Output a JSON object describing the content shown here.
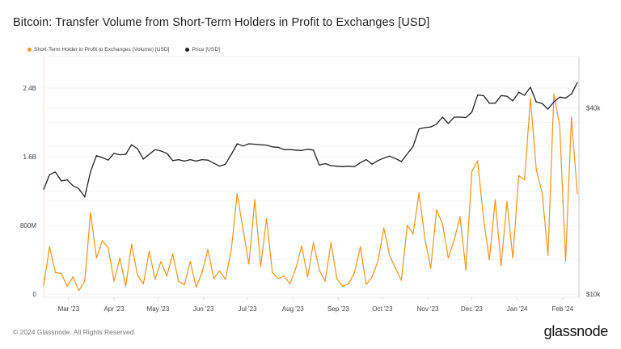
{
  "title": "Bitcoin: Transfer Volume from Short-Term Holders in Profit to Exchanges [USD]",
  "footer": "© 2024 Glassnode. All Rights Reserved.",
  "logo": "glassnode",
  "chart_data": {
    "type": "line",
    "title": "Bitcoin: Transfer Volume from Short-Term Holders in Profit to Exchanges [USD]",
    "legend_position": "top-left",
    "grid": true,
    "x_ticks": [
      "Mar '23",
      "Apr '23",
      "May '23",
      "Jun '23",
      "Jul '23",
      "Aug '23",
      "Sep '23",
      "Oct '23",
      "Nov '23",
      "Dec '23",
      "Jan '24",
      "Feb '24"
    ],
    "x_tick_dates": [
      "2023-03-01",
      "2023-04-01",
      "2023-05-01",
      "2023-06-01",
      "2023-07-01",
      "2023-08-01",
      "2023-09-01",
      "2023-10-01",
      "2023-11-01",
      "2023-12-01",
      "2024-01-01",
      "2024-02-01"
    ],
    "xlim": [
      "2023-02-12",
      "2024-02-11"
    ],
    "y_left": {
      "ticks": [
        "0",
        "800M",
        "1.6B",
        "2.4B"
      ],
      "tick_values": [
        0,
        800000000,
        1600000000,
        2400000000
      ],
      "ylim": [
        0,
        2800000000
      ],
      "scale": "linear"
    },
    "y_right": {
      "ticks": [
        "$10k",
        "$40k"
      ],
      "tick_values": [
        10000,
        40000
      ],
      "ylim": [
        10000,
        55000
      ],
      "scale": "log"
    },
    "x": [
      "2023-02-12",
      "2023-02-16",
      "2023-02-20",
      "2023-02-24",
      "2023-02-28",
      "2023-03-04",
      "2023-03-08",
      "2023-03-12",
      "2023-03-16",
      "2023-03-20",
      "2023-03-24",
      "2023-03-28",
      "2023-04-01",
      "2023-04-05",
      "2023-04-09",
      "2023-04-13",
      "2023-04-17",
      "2023-04-21",
      "2023-04-25",
      "2023-04-29",
      "2023-05-03",
      "2023-05-07",
      "2023-05-11",
      "2023-05-15",
      "2023-05-19",
      "2023-05-23",
      "2023-05-27",
      "2023-05-31",
      "2023-06-04",
      "2023-06-08",
      "2023-06-12",
      "2023-06-16",
      "2023-06-20",
      "2023-06-24",
      "2023-06-28",
      "2023-07-02",
      "2023-07-06",
      "2023-07-10",
      "2023-07-14",
      "2023-07-18",
      "2023-07-22",
      "2023-07-26",
      "2023-07-30",
      "2023-08-03",
      "2023-08-07",
      "2023-08-11",
      "2023-08-15",
      "2023-08-19",
      "2023-08-23",
      "2023-08-27",
      "2023-08-31",
      "2023-09-04",
      "2023-09-08",
      "2023-09-12",
      "2023-09-16",
      "2023-09-20",
      "2023-09-24",
      "2023-09-28",
      "2023-10-02",
      "2023-10-06",
      "2023-10-10",
      "2023-10-14",
      "2023-10-18",
      "2023-10-22",
      "2023-10-26",
      "2023-10-30",
      "2023-11-03",
      "2023-11-07",
      "2023-11-11",
      "2023-11-15",
      "2023-11-19",
      "2023-11-23",
      "2023-11-27",
      "2023-12-01",
      "2023-12-05",
      "2023-12-09",
      "2023-12-13",
      "2023-12-17",
      "2023-12-21",
      "2023-12-25",
      "2023-12-29",
      "2024-01-02",
      "2024-01-06",
      "2024-01-10",
      "2024-01-14",
      "2024-01-18",
      "2024-01-22",
      "2024-01-26",
      "2024-01-30",
      "2024-02-03",
      "2024-02-07",
      "2024-02-11"
    ],
    "series": [
      {
        "name": "Short-Term Holder in Profit to Exchanges (Volume) [USD]",
        "axis": "left",
        "color": "#f7931a",
        "values_usd_millions": [
          100,
          550,
          250,
          240,
          90,
          200,
          40,
          150,
          950,
          420,
          620,
          540,
          150,
          420,
          90,
          580,
          220,
          120,
          500,
          170,
          380,
          210,
          470,
          150,
          110,
          380,
          80,
          250,
          520,
          180,
          270,
          170,
          520,
          1170,
          750,
          350,
          1100,
          320,
          880,
          250,
          180,
          210,
          120,
          300,
          560,
          200,
          600,
          280,
          150,
          600,
          180,
          90,
          120,
          250,
          550,
          110,
          200,
          380,
          770,
          450,
          300,
          160,
          800,
          700,
          1180,
          650,
          300,
          980,
          820,
          420,
          630,
          900,
          280,
          1430,
          1550,
          880,
          400,
          1100,
          330,
          1080,
          420,
          1380,
          1330,
          2280,
          1450,
          1180,
          450,
          2330,
          1960,
          380,
          2060,
          1170
        ]
      },
      {
        "name": "Price [USD]",
        "axis": "right",
        "color": "#222222",
        "values_usd_thousands": [
          21.8,
          24.3,
          24.8,
          23.2,
          23.4,
          22.4,
          21.9,
          20.6,
          24.9,
          28.0,
          27.6,
          27.1,
          28.5,
          28.2,
          28.3,
          30.4,
          29.5,
          27.3,
          28.3,
          29.3,
          29.0,
          28.5,
          27.0,
          27.2,
          26.9,
          27.2,
          26.9,
          27.2,
          27.1,
          26.5,
          25.9,
          26.3,
          28.3,
          30.6,
          30.1,
          30.6,
          30.5,
          30.4,
          30.3,
          29.9,
          29.8,
          29.3,
          29.3,
          29.2,
          29.1,
          29.4,
          29.2,
          26.1,
          26.4,
          26.0,
          25.9,
          25.8,
          25.9,
          25.8,
          26.6,
          27.2,
          26.3,
          27.0,
          27.5,
          27.9,
          27.4,
          26.8,
          28.4,
          30.0,
          34.2,
          34.5,
          34.7,
          35.4,
          37.3,
          35.6,
          37.3,
          37.3,
          37.2,
          38.7,
          44.0,
          43.8,
          41.4,
          41.4,
          43.8,
          43.6,
          42.1,
          44.9,
          43.9,
          46.6,
          41.8,
          41.3,
          39.6,
          41.8,
          43.3,
          43.0,
          44.3,
          48.3
        ]
      }
    ]
  }
}
